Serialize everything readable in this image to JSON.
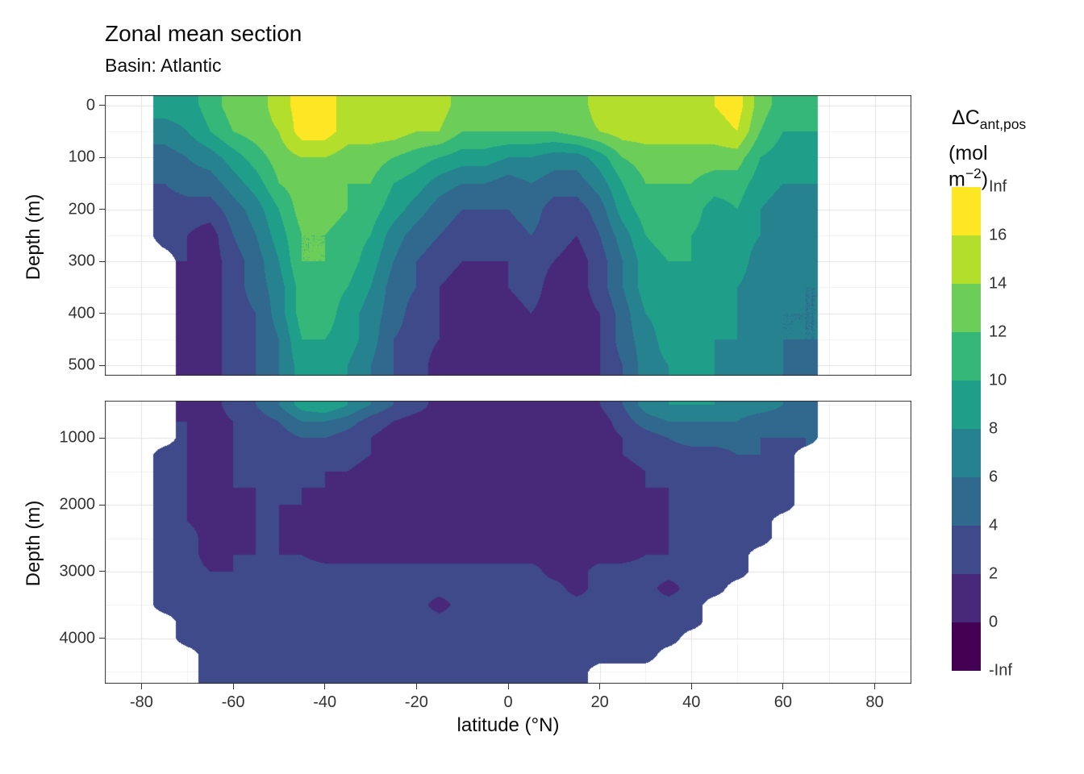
{
  "title": "Zonal mean section",
  "subtitle": "Basin: Atlantic",
  "legend": {
    "title_main": "ΔC",
    "title_sub": "ant,pos",
    "unit_pre": "(mol m",
    "unit_sup": "−2",
    "unit_post": ")",
    "labels_top_to_bottom": [
      "Inf",
      "16",
      "14",
      "12",
      "10",
      "8",
      "6",
      "4",
      "2",
      "0",
      "-Inf"
    ],
    "colors_top_to_bottom": [
      "#FDE725",
      "#B4DE2C",
      "#6DCD59",
      "#35B779",
      "#1F9E89",
      "#26828E",
      "#31688E",
      "#3E4A89",
      "#482878",
      "#440154"
    ]
  },
  "chart_data": {
    "type": "heatmap",
    "subtype": "filled-contour-section",
    "title": "Zonal mean section",
    "subtitle": "Basin: Atlantic",
    "xlabel": "latitude (°N)",
    "ylabel": "Depth (m)",
    "legend_title": "ΔC ant,pos (mol m−2)",
    "x_domain": [
      -88,
      88
    ],
    "x_tick_values": [
      -80,
      -60,
      -40,
      -20,
      0,
      20,
      40,
      60,
      80
    ],
    "x_tick_labels": [
      "-80",
      "-60",
      "-40",
      "-20",
      "0",
      "20",
      "40",
      "60",
      "80"
    ],
    "levels": [
      0,
      2,
      4,
      6,
      8,
      10,
      12,
      14,
      16
    ],
    "level_labels": [
      "-Inf",
      "0",
      "2",
      "4",
      "6",
      "8",
      "10",
      "12",
      "14",
      "16",
      "Inf"
    ],
    "colors": [
      "#440154",
      "#482878",
      "#3E4A89",
      "#31688E",
      "#26828E",
      "#1F9E89",
      "#35B779",
      "#6DCD59",
      "#B4DE2C",
      "#FDE725"
    ],
    "theme": {
      "grid_major": "#E2E2E2",
      "grid_minor": "#F1F1F1",
      "border": "#2F2F2F"
    },
    "lats": [
      -80,
      -75,
      -70,
      -65,
      -60,
      -55,
      -50,
      -45,
      -40,
      -35,
      -30,
      -25,
      -20,
      -15,
      -10,
      -5,
      0,
      5,
      10,
      15,
      20,
      25,
      30,
      35,
      40,
      45,
      50,
      55,
      60,
      65,
      70,
      75,
      80
    ],
    "panels": [
      {
        "name": "upper",
        "y_domain": [
          -20,
          520
        ],
        "y_tick_values": [
          0,
          100,
          200,
          300,
          400,
          500
        ],
        "y_tick_labels": [
          "0",
          "100",
          "200",
          "300",
          "400",
          "500"
        ],
        "depths": [
          0,
          50,
          100,
          150,
          200,
          250,
          300,
          350,
          400,
          450,
          500
        ],
        "values": [
          [
            null,
            9,
            9,
            11,
            13,
            13,
            15,
            17,
            17,
            15,
            15,
            15,
            15,
            15,
            13,
            13,
            13,
            13,
            13,
            13,
            15,
            15,
            15,
            15,
            15,
            16,
            17,
            13,
            11,
            11,
            null,
            null,
            null
          ],
          [
            null,
            7,
            8,
            10,
            12,
            13,
            14,
            17,
            17,
            15,
            15,
            15,
            14,
            14,
            12,
            12,
            12,
            12,
            12,
            13,
            14,
            15,
            15,
            15,
            15,
            15,
            16,
            12,
            10,
            10,
            null,
            null,
            null
          ],
          [
            null,
            5,
            6,
            7,
            9,
            11,
            13,
            14,
            14,
            13,
            13,
            12,
            11,
            10,
            9,
            9,
            8,
            8,
            7,
            7,
            9,
            12,
            13,
            13,
            13,
            13,
            13,
            10,
            9,
            9,
            null,
            null,
            null
          ],
          [
            null,
            4,
            5,
            5,
            7,
            9,
            12,
            13,
            13,
            12,
            12,
            10,
            9,
            7,
            6,
            6,
            5,
            6,
            5,
            5,
            7,
            10,
            12,
            12,
            12,
            11,
            11,
            9,
            8,
            8,
            null,
            null,
            null
          ],
          [
            null,
            3,
            3,
            3,
            5,
            7,
            10,
            13,
            13,
            12,
            11,
            9,
            7,
            5,
            4,
            4,
            4,
            5,
            3,
            3,
            5,
            9,
            11,
            11,
            11,
            9,
            10,
            8,
            7,
            7,
            null,
            null,
            null
          ],
          [
            null,
            3,
            2,
            1,
            4,
            6,
            9,
            12,
            12,
            11,
            10,
            7,
            5,
            4,
            3,
            3,
            3,
            4,
            3,
            2,
            4,
            7,
            10,
            11,
            10,
            9,
            9,
            8,
            7,
            7,
            null,
            null,
            null
          ],
          [
            null,
            null,
            2,
            1,
            3,
            5,
            8,
            12,
            12,
            11,
            9,
            6,
            4,
            3,
            2,
            2,
            2,
            3,
            2,
            1,
            3,
            6,
            9,
            10,
            10,
            9,
            9,
            7,
            7,
            7,
            null,
            null,
            null
          ],
          [
            null,
            null,
            1,
            1,
            3,
            5,
            7,
            11,
            11,
            10,
            8,
            5,
            4,
            2,
            1,
            1,
            2,
            3,
            1,
            1,
            3,
            6,
            9,
            10,
            9,
            9,
            8,
            7,
            7,
            6,
            null,
            null,
            null
          ],
          [
            null,
            null,
            1,
            1,
            3,
            4,
            7,
            11,
            11,
            9,
            7,
            5,
            3,
            2,
            1,
            1,
            1,
            2,
            1,
            1,
            2,
            5,
            8,
            9,
            9,
            8,
            8,
            7,
            6,
            6,
            null,
            null,
            null
          ],
          [
            null,
            null,
            1,
            1,
            3,
            4,
            6,
            10,
            10,
            9,
            7,
            4,
            3,
            2,
            1,
            1,
            1,
            2,
            1,
            1,
            2,
            5,
            7,
            9,
            9,
            8,
            8,
            7,
            6,
            6,
            null,
            null,
            null
          ],
          [
            null,
            null,
            1,
            1,
            3,
            4,
            6,
            9,
            10,
            8,
            6,
            4,
            3,
            1,
            1,
            1,
            1,
            1,
            1,
            1,
            2,
            4,
            7,
            8,
            8,
            8,
            7,
            7,
            6,
            5,
            null,
            null,
            null
          ]
        ]
      },
      {
        "name": "lower",
        "y_domain": [
          440,
          4680
        ],
        "y_tick_values": [
          1000,
          2000,
          3000,
          4000
        ],
        "y_tick_labels": [
          "1000",
          "2000",
          "3000",
          "4000"
        ],
        "depths": [
          500,
          750,
          1000,
          1250,
          1500,
          1750,
          2000,
          2250,
          2500,
          2750,
          3000,
          3250,
          3500,
          3750,
          4000,
          4250,
          4500
        ],
        "values": [
          [
            null,
            null,
            1,
            1,
            3,
            4,
            6,
            9,
            10,
            8,
            6,
            4,
            3,
            1,
            1,
            1,
            1,
            1,
            1,
            1,
            2,
            4,
            7,
            8,
            8,
            8,
            7,
            7,
            6,
            5,
            null,
            null,
            null
          ],
          [
            null,
            null,
            2,
            1,
            2,
            3,
            4,
            6,
            6,
            5,
            3,
            2,
            1,
            1,
            1,
            1,
            1,
            1,
            1,
            1,
            1,
            3,
            5,
            6,
            6,
            6,
            6,
            5,
            5,
            5,
            null,
            null,
            null
          ],
          [
            null,
            null,
            2,
            1,
            2,
            3,
            3,
            4,
            4,
            3,
            2,
            1,
            1,
            1,
            1,
            1,
            1,
            1,
            1,
            1,
            1,
            2,
            3,
            4,
            5,
            5,
            5,
            4,
            4,
            4,
            null,
            null,
            null
          ],
          [
            null,
            3,
            2,
            1,
            2,
            3,
            3,
            3,
            3,
            3,
            2,
            1,
            1,
            1,
            1,
            1,
            1,
            1,
            1,
            1,
            1,
            2,
            3,
            3,
            3,
            3,
            4,
            4,
            3,
            null,
            null,
            null,
            null
          ],
          [
            null,
            3,
            2,
            1,
            2,
            2,
            3,
            3,
            2,
            2,
            1,
            1,
            1,
            1,
            1,
            1,
            1,
            1,
            1,
            1,
            1,
            1,
            2,
            3,
            3,
            3,
            3,
            3,
            3,
            null,
            null,
            null,
            null
          ],
          [
            null,
            3,
            2,
            1,
            2,
            2,
            2,
            2,
            2,
            1,
            1,
            1,
            1,
            1,
            1,
            1,
            1,
            1,
            1,
            1,
            1,
            1,
            2,
            2,
            3,
            3,
            3,
            3,
            3,
            null,
            null,
            null,
            null
          ],
          [
            null,
            3,
            2,
            1,
            1,
            2,
            2,
            2,
            1,
            1,
            1,
            1,
            1,
            1,
            1,
            1,
            1,
            1,
            1,
            1,
            1,
            1,
            1,
            2,
            2,
            3,
            3,
            3,
            3,
            null,
            null,
            null,
            null
          ],
          [
            null,
            3,
            2,
            1,
            1,
            2,
            2,
            1,
            1,
            1,
            1,
            1,
            1,
            1,
            1,
            1,
            1,
            1,
            1,
            1,
            1,
            1,
            1,
            2,
            2,
            3,
            3,
            3,
            null,
            null,
            null,
            null,
            null
          ],
          [
            null,
            3,
            3,
            1,
            1,
            2,
            2,
            1,
            1,
            1,
            1,
            1,
            1,
            1,
            1,
            1,
            1,
            1,
            1,
            1,
            1,
            1,
            1,
            2,
            2,
            3,
            3,
            3,
            null,
            null,
            null,
            null,
            null
          ],
          [
            null,
            3,
            3,
            1,
            2,
            2,
            2,
            2,
            1,
            1,
            1,
            1,
            1,
            1,
            1,
            1,
            1,
            1,
            1,
            1,
            1,
            1,
            2,
            2,
            2,
            3,
            3,
            null,
            null,
            null,
            null,
            null,
            null
          ],
          [
            null,
            3,
            3,
            2,
            2,
            3,
            3,
            3,
            3,
            3,
            3,
            3,
            3,
            3,
            3,
            3,
            3,
            3,
            1,
            1,
            3,
            3,
            3,
            3,
            3,
            3,
            3,
            null,
            null,
            null,
            null,
            null,
            null
          ],
          [
            null,
            3,
            3,
            2,
            3,
            3,
            3,
            3,
            3,
            3,
            3,
            3,
            3,
            3,
            3,
            3,
            3,
            3,
            3,
            1,
            3,
            3,
            3,
            1,
            3,
            3,
            null,
            null,
            null,
            null,
            null,
            null,
            null
          ],
          [
            null,
            3,
            3,
            2,
            3,
            3,
            3,
            3,
            3,
            3,
            3,
            3,
            3,
            1,
            3,
            3,
            3,
            3,
            3,
            3,
            3,
            3,
            3,
            3,
            3,
            null,
            null,
            null,
            null,
            null,
            null,
            null,
            null
          ],
          [
            null,
            null,
            3,
            3,
            3,
            3,
            3,
            3,
            3,
            3,
            3,
            3,
            3,
            3,
            3,
            3,
            3,
            3,
            3,
            3,
            3,
            3,
            3,
            3,
            3,
            null,
            null,
            null,
            null,
            null,
            null,
            null,
            null
          ],
          [
            null,
            null,
            3,
            3,
            3,
            3,
            3,
            3,
            3,
            3,
            3,
            3,
            3,
            3,
            3,
            3,
            3,
            3,
            3,
            3,
            3,
            3,
            3,
            3,
            null,
            null,
            null,
            null,
            null,
            null,
            null,
            null,
            null
          ],
          [
            null,
            null,
            null,
            3,
            3,
            3,
            3,
            3,
            3,
            3,
            3,
            3,
            3,
            3,
            3,
            3,
            3,
            3,
            3,
            3,
            3,
            3,
            3,
            null,
            null,
            null,
            null,
            null,
            null,
            null,
            null,
            null,
            null
          ],
          [
            null,
            null,
            null,
            3,
            3,
            3,
            3,
            3,
            3,
            3,
            3,
            3,
            3,
            3,
            3,
            3,
            3,
            3,
            3,
            3,
            null,
            null,
            null,
            null,
            null,
            null,
            null,
            null,
            null,
            null,
            null,
            null,
            null
          ]
        ]
      }
    ]
  }
}
